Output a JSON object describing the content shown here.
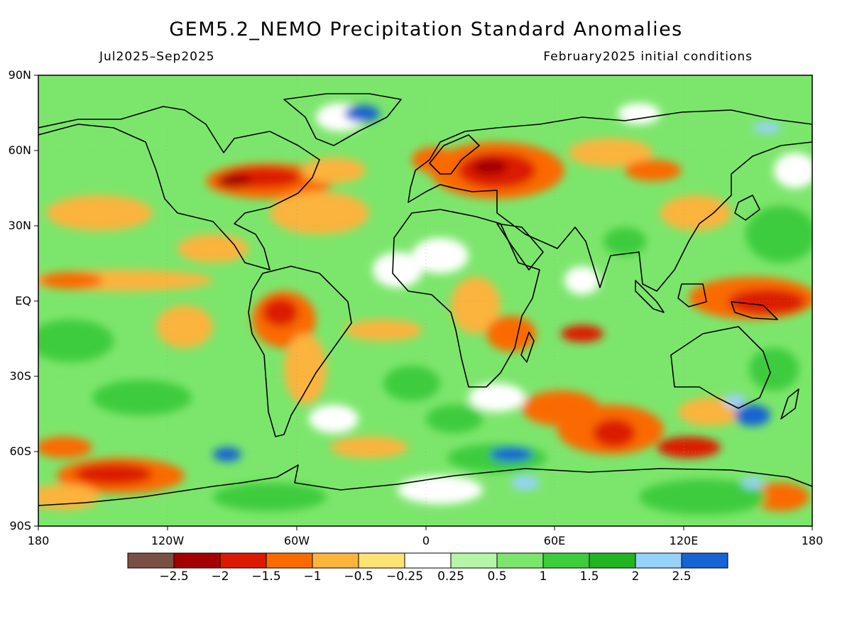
{
  "title": "GEM5.2_NEMO Precipitation Standard Anomalies",
  "period": "Jul2025–Sep2025",
  "initial_conditions": "February2025 initial conditions",
  "lat_labels": [
    "90N",
    "60N",
    "30N",
    "EQ",
    "30S",
    "60S",
    "90S"
  ],
  "lon_labels": [
    "180",
    "120W",
    "60W",
    "0",
    "60E",
    "120E",
    "180"
  ],
  "colorbar": {
    "colors": [
      "#7a5045",
      "#a50000",
      "#dc1a00",
      "#fa6a00",
      "#fbb43c",
      "#fde375",
      "#ffffff",
      "#b6f5a8",
      "#7ce66c",
      "#3ccc3c",
      "#22b422",
      "#96d2fa",
      "#1464d2"
    ],
    "labels": [
      "−2.5",
      "−2",
      "−1.5",
      "−1",
      "−0.5",
      "−0.25",
      "0.25",
      "0.5",
      "1",
      "1.5",
      "2",
      "2.5"
    ]
  },
  "colors": {
    "strong_wet": "#1464d2",
    "very_wet": "#96d2fa",
    "wet": "#3ccc3c",
    "mild_wet": "#7ce66c",
    "light_wet": "#b6f5a8",
    "neutral": "#ffffff",
    "light_dry": "#fde375",
    "mild_dry": "#fbb43c",
    "dry": "#fa6a00",
    "very_dry": "#dc1a00",
    "extreme_dry": "#a50000",
    "coastline": "#000000"
  }
}
